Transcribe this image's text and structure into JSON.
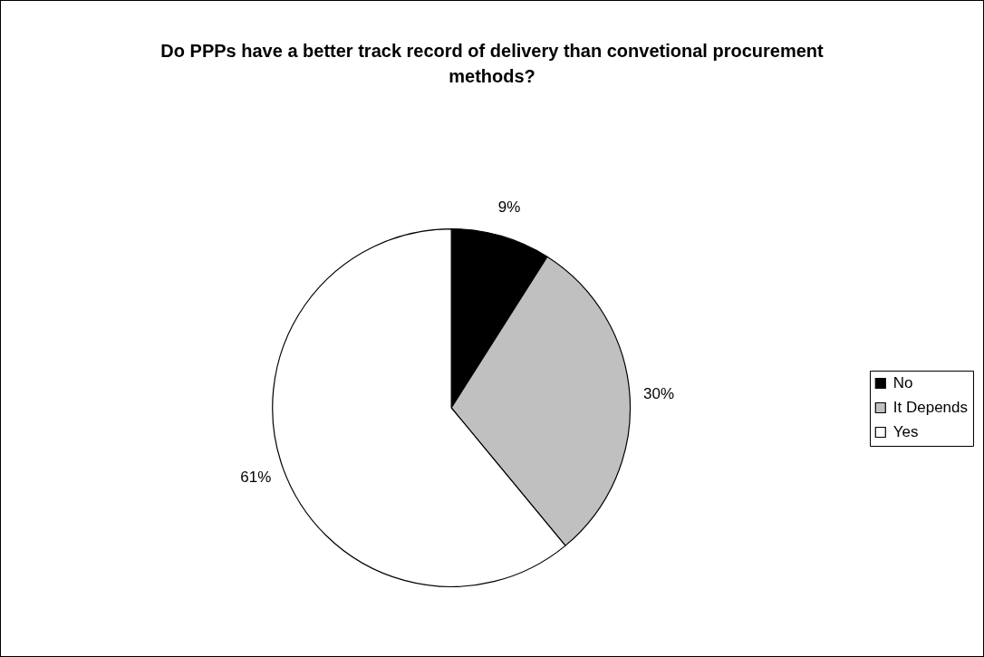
{
  "chart_data": {
    "type": "pie",
    "title": "Do PPPs have a better track record of delivery than convetional procurement methods?",
    "categories": [
      "No",
      "It Depends",
      "Yes"
    ],
    "values": [
      9,
      30,
      61
    ],
    "value_labels": [
      "9%",
      "30%",
      "61%"
    ],
    "colors": [
      "#000000",
      "#c0c0c0",
      "#ffffff"
    ],
    "legend": "right"
  }
}
